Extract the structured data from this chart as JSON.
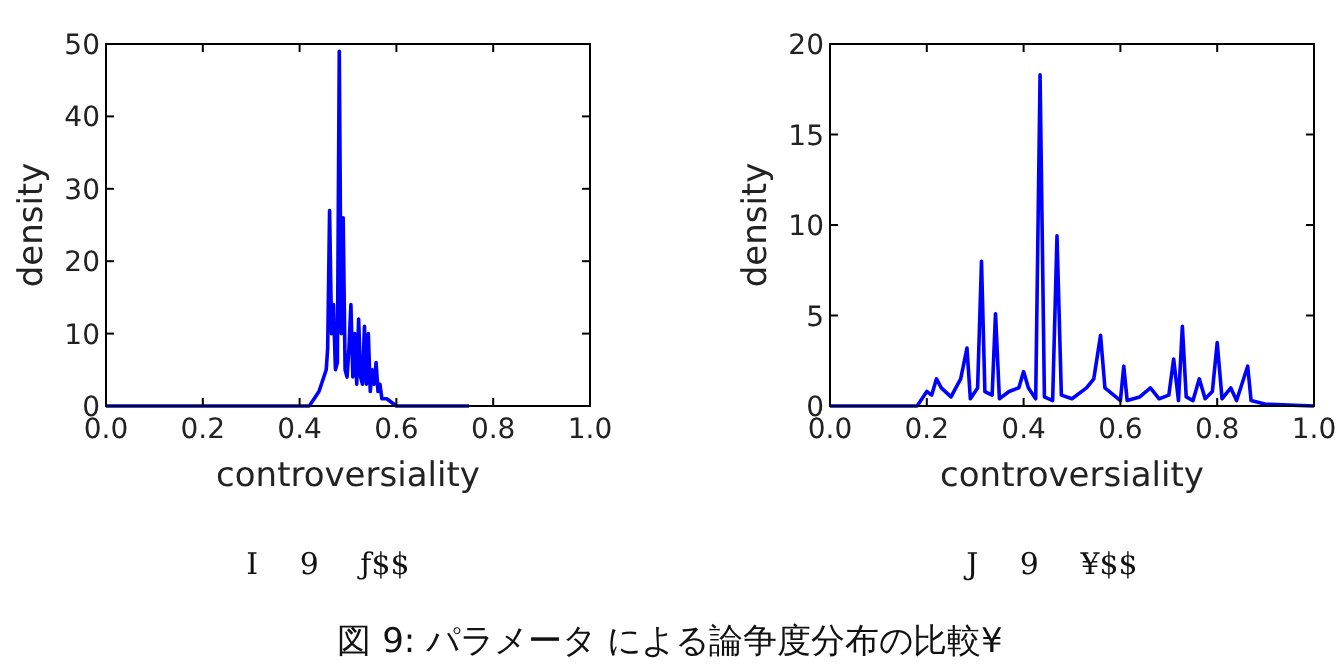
{
  "chart_data": [
    {
      "type": "line",
      "xlabel": "controversiality",
      "ylabel": "density",
      "xlim": [
        0,
        1
      ],
      "ylim": [
        0,
        50
      ],
      "xticks": [
        {
          "value": 0,
          "label": "0.0"
        },
        {
          "value": 0.2,
          "label": "0.2"
        },
        {
          "value": 0.4,
          "label": "0.4"
        },
        {
          "value": 0.6,
          "label": "0.6"
        },
        {
          "value": 0.8,
          "label": "0.8"
        },
        {
          "value": 1,
          "label": "1.0"
        }
      ],
      "yticks": [
        0,
        10,
        20,
        30,
        40,
        50
      ],
      "series": [
        {
          "color": "#0000ff",
          "x": [
            0,
            0.42,
            0.44,
            0.45,
            0.455,
            0.458,
            0.462,
            0.466,
            0.47,
            0.474,
            0.478,
            0.482,
            0.486,
            0.49,
            0.494,
            0.498,
            0.502,
            0.506,
            0.51,
            0.514,
            0.518,
            0.522,
            0.526,
            0.53,
            0.534,
            0.538,
            0.542,
            0.546,
            0.55,
            0.554,
            0.558,
            0.562,
            0.566,
            0.57,
            0.58,
            0.6,
            0.75
          ],
          "values": [
            0,
            0,
            2,
            4,
            5,
            8,
            27,
            10,
            14,
            5,
            6,
            49,
            10,
            26,
            5,
            4,
            8,
            14,
            4,
            10,
            3,
            12,
            4,
            3,
            11,
            3,
            10,
            2,
            5,
            3,
            6,
            2,
            3,
            1,
            1,
            0,
            0
          ]
        }
      ],
      "annotations": [
        "I 9 ƒ$$"
      ]
    },
    {
      "type": "line",
      "xlabel": "controversiality",
      "ylabel": "density",
      "xlim": [
        0,
        1
      ],
      "ylim": [
        0,
        20
      ],
      "xticks": [
        {
          "value": 0,
          "label": "0.0"
        },
        {
          "value": 0.2,
          "label": "0.2"
        },
        {
          "value": 0.4,
          "label": "0.4"
        },
        {
          "value": 0.6,
          "label": "0.6"
        },
        {
          "value": 0.8,
          "label": "0.8"
        },
        {
          "value": 1,
          "label": "1.0"
        }
      ],
      "yticks": [
        0,
        5,
        10,
        15,
        20
      ],
      "series": [
        {
          "color": "#0000ff",
          "x": [
            0,
            0.18,
            0.2,
            0.21,
            0.22,
            0.23,
            0.25,
            0.27,
            0.283,
            0.29,
            0.305,
            0.313,
            0.32,
            0.335,
            0.342,
            0.35,
            0.37,
            0.39,
            0.4,
            0.41,
            0.425,
            0.434,
            0.443,
            0.46,
            0.469,
            0.478,
            0.5,
            0.53,
            0.545,
            0.559,
            0.568,
            0.6,
            0.607,
            0.614,
            0.64,
            0.662,
            0.68,
            0.7,
            0.71,
            0.72,
            0.728,
            0.736,
            0.75,
            0.763,
            0.775,
            0.79,
            0.8,
            0.81,
            0.828,
            0.84,
            0.863,
            0.87,
            0.9,
            1
          ],
          "values": [
            0,
            0,
            0.8,
            0.6,
            1.5,
            1,
            0.5,
            1.5,
            3.2,
            0.4,
            1,
            8,
            0.8,
            0.6,
            5.1,
            0.4,
            0.8,
            1,
            1.9,
            1,
            0.4,
            18.3,
            0.5,
            0.3,
            9.4,
            0.6,
            0.4,
            1,
            1.5,
            3.9,
            1,
            0.3,
            2.2,
            0.3,
            0.5,
            1,
            0.4,
            0.6,
            2.6,
            0.3,
            4.4,
            0.5,
            0.3,
            1.5,
            0.4,
            0.8,
            3.5,
            0.4,
            1,
            0.3,
            2.2,
            0.3,
            0.1,
            0
          ]
        }
      ],
      "annotations": [
        "J 9 ¥$$",
        "図 9: パラメータ による論争度分布の比較¥"
      ]
    }
  ]
}
